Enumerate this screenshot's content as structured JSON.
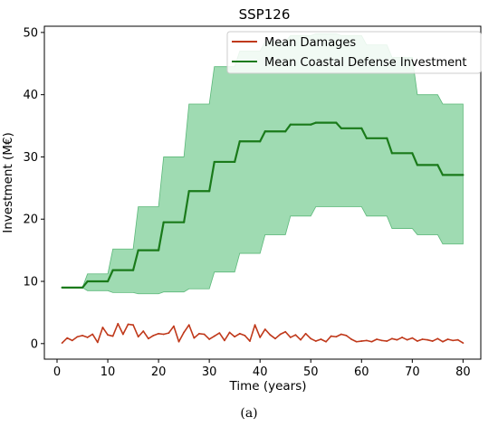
{
  "caption": "(a)",
  "chart_data": {
    "type": "line",
    "title": "SSP126",
    "xlabel": "Time (years)",
    "ylabel": "Investment (M€)",
    "xlim": [
      -2.5,
      83.5
    ],
    "ylim": [
      -2.5,
      51
    ],
    "xticks": [
      0,
      10,
      20,
      30,
      40,
      50,
      60,
      70,
      80
    ],
    "yticks": [
      0,
      10,
      20,
      30,
      40,
      50
    ],
    "grid": false,
    "legend_position": "top-right",
    "colors": {
      "damages": "#c0391b",
      "defense": "#1a7a1a",
      "band": "#7fcf98",
      "band_edge": "#5cb87a"
    },
    "series": [
      {
        "name": "Mean Damages",
        "x": [
          1,
          2,
          3,
          4,
          5,
          6,
          7,
          8,
          9,
          10,
          11,
          12,
          13,
          14,
          15,
          16,
          17,
          18,
          19,
          20,
          21,
          22,
          23,
          24,
          25,
          26,
          27,
          28,
          29,
          30,
          31,
          32,
          33,
          34,
          35,
          36,
          37,
          38,
          39,
          40,
          41,
          42,
          43,
          44,
          45,
          46,
          47,
          48,
          49,
          50,
          51,
          52,
          53,
          54,
          55,
          56,
          57,
          58,
          59,
          60,
          61,
          62,
          63,
          64,
          65,
          66,
          67,
          68,
          69,
          70,
          71,
          72,
          73,
          74,
          75,
          76,
          77,
          78,
          79,
          80
        ],
        "y": [
          0.1,
          0.9,
          0.5,
          1.1,
          1.3,
          1.0,
          1.5,
          0.2,
          2.6,
          1.4,
          1.2,
          3.2,
          1.5,
          3.1,
          3.0,
          1.1,
          2.0,
          0.8,
          1.3,
          1.6,
          1.5,
          1.7,
          2.8,
          0.3,
          1.8,
          3.0,
          0.9,
          1.6,
          1.5,
          0.7,
          1.2,
          1.7,
          0.5,
          1.8,
          1.1,
          1.6,
          1.3,
          0.4,
          3.0,
          1.0,
          2.3,
          1.4,
          0.8,
          1.5,
          1.9,
          1.0,
          1.4,
          0.6,
          1.6,
          0.8,
          0.4,
          0.7,
          0.3,
          1.2,
          1.1,
          1.5,
          1.3,
          0.7,
          0.3,
          0.4,
          0.5,
          0.3,
          0.7,
          0.5,
          0.4,
          0.8,
          0.6,
          1.0,
          0.6,
          0.9,
          0.4,
          0.7,
          0.6,
          0.4,
          0.8,
          0.3,
          0.7,
          0.5,
          0.6,
          0.1
        ]
      },
      {
        "name": "Mean Coastal Defense Investment",
        "x": [
          1,
          5,
          6,
          10,
          11,
          15,
          16,
          20,
          21,
          25,
          26,
          30,
          31,
          35,
          36,
          40,
          41,
          45,
          46,
          50,
          51,
          55,
          56,
          60,
          61,
          65,
          66,
          70,
          71,
          75,
          76,
          80
        ],
        "y": [
          9,
          9,
          10,
          10,
          11.8,
          11.8,
          15,
          15,
          19.5,
          19.5,
          24.5,
          24.5,
          29.2,
          29.2,
          32.5,
          32.5,
          34.1,
          34.1,
          35.2,
          35.2,
          35.5,
          35.5,
          34.6,
          34.6,
          33.0,
          33.0,
          30.6,
          30.6,
          28.7,
          28.7,
          27.1,
          27.1
        ],
        "upper": [
          9,
          9,
          11.2,
          11.2,
          15.2,
          15.2,
          22,
          22,
          30,
          30,
          38.5,
          38.5,
          44.5,
          44.5,
          47,
          47,
          48.5,
          48.5,
          49.5,
          49.5,
          49.8,
          49.8,
          49.5,
          49.5,
          48,
          48,
          46,
          46,
          40,
          40,
          38.5,
          38.5
        ],
        "lower": [
          9,
          9,
          8.5,
          8.5,
          8.2,
          8.2,
          8.0,
          8.0,
          8.3,
          8.3,
          8.8,
          8.8,
          11.5,
          11.5,
          14.5,
          14.5,
          17.5,
          17.5,
          20.5,
          20.5,
          22,
          22,
          22,
          22,
          20.5,
          20.5,
          18.5,
          18.5,
          17.5,
          17.5,
          16,
          16
        ]
      }
    ]
  }
}
